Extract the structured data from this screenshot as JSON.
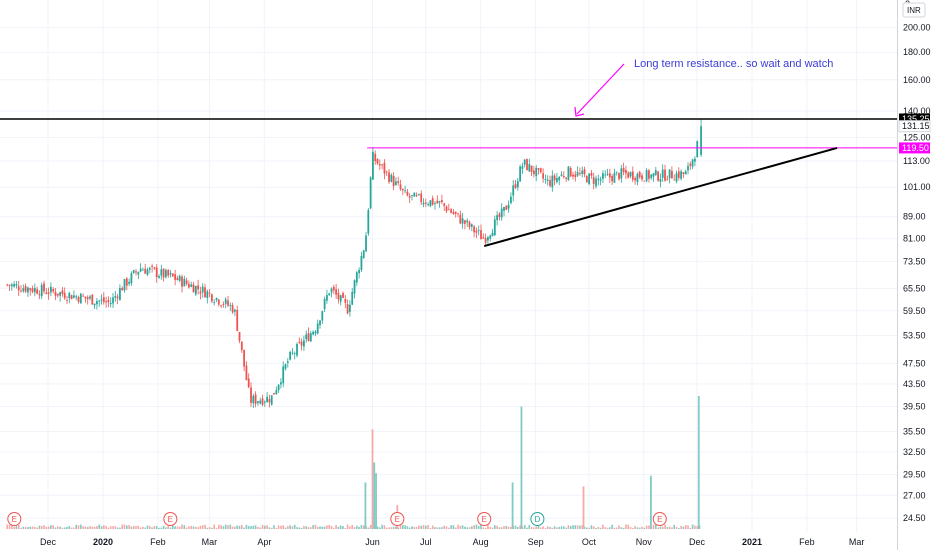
{
  "app": {
    "currency_label": "INR",
    "top_value": "2"
  },
  "annotation": {
    "text": "Long term resistance.. so wait and watch"
  },
  "price_labels": {
    "resistance": "135.25",
    "last": "131.15",
    "support_line": "119.50"
  },
  "colors": {
    "up": "#26a69a",
    "down": "#ef5350",
    "vol_up": "#80cbc4",
    "vol_down": "#f7a9a7",
    "resistance": "#000000",
    "horizontal": "#ff00ff",
    "trendline": "#000000",
    "annotation": "#3c3cd4",
    "earnings": "#ef5350",
    "dividend": "#26a69a"
  },
  "chart_data": {
    "type": "candlestick",
    "y_axis": {
      "ticks": [
        "200.00",
        "180.00",
        "160.00",
        "140.00",
        "125.00",
        "113.00",
        "101.00",
        "89.00",
        "81.00",
        "73.50",
        "65.50",
        "59.50",
        "53.50",
        "47.50",
        "43.50",
        "39.50",
        "35.50",
        "32.50",
        "29.50",
        "27.00",
        "24.50"
      ],
      "range": [
        22.5,
        230
      ],
      "scale": "log"
    },
    "x_axis": {
      "ticks": [
        "Dec",
        "2020",
        "Feb",
        "Mar",
        "Apr",
        "Jun",
        "Jul",
        "Aug",
        "Sep",
        "Oct",
        "Nov",
        "Dec",
        "2021",
        "Feb",
        "Mar"
      ]
    },
    "series_anchors": [
      {
        "date": "2019-11-08",
        "close": 66.5
      },
      {
        "date": "2019-12-10",
        "close": 64.0
      },
      {
        "date": "2020-01-05",
        "close": 61.5
      },
      {
        "date": "2020-01-12",
        "close": 66.0
      },
      {
        "date": "2020-01-22",
        "close": 71.5
      },
      {
        "date": "2020-02-10",
        "close": 68.5
      },
      {
        "date": "2020-02-28",
        "close": 64.5
      },
      {
        "date": "2020-03-15",
        "close": 60.0
      },
      {
        "date": "2020-03-24",
        "close": 40.5
      },
      {
        "date": "2020-04-05",
        "close": 41.0
      },
      {
        "date": "2020-04-15",
        "close": 48.5
      },
      {
        "date": "2020-04-30",
        "close": 55.5
      },
      {
        "date": "2020-05-08",
        "close": 65.5
      },
      {
        "date": "2020-05-18",
        "close": 60.0
      },
      {
        "date": "2020-05-28",
        "close": 80.0
      },
      {
        "date": "2020-06-01",
        "close": 115.0
      },
      {
        "date": "2020-06-20",
        "close": 97.0
      },
      {
        "date": "2020-07-10",
        "close": 94.0
      },
      {
        "date": "2020-08-03",
        "close": 81.0
      },
      {
        "date": "2020-08-15",
        "close": 92.0
      },
      {
        "date": "2020-08-25",
        "close": 112.0
      },
      {
        "date": "2020-09-08",
        "close": 103.0
      },
      {
        "date": "2020-09-20",
        "close": 108.0
      },
      {
        "date": "2020-10-05",
        "close": 104.0
      },
      {
        "date": "2020-10-20",
        "close": 107.0
      },
      {
        "date": "2020-11-05",
        "close": 106.0
      },
      {
        "date": "2020-11-25",
        "close": 107.0
      },
      {
        "date": "2020-12-01",
        "close": 119.5
      },
      {
        "date": "2020-12-02",
        "close": 131.15
      }
    ],
    "lines": {
      "resistance": {
        "price": 135.25
      },
      "horizontal": {
        "price": 119.5,
        "from": "2020-05-29",
        "to": "2021-02-18"
      },
      "trendline": {
        "from": {
          "date": "2020-08-03",
          "price": 78.5
        },
        "to": {
          "date": "2021-02-18",
          "price": 119.5
        }
      }
    },
    "event_markers": [
      {
        "date": "2019-11-12",
        "label": "E",
        "kind": "earnings"
      },
      {
        "date": "2020-02-08",
        "label": "E",
        "kind": "earnings"
      },
      {
        "date": "2020-06-15",
        "label": "E",
        "kind": "earnings"
      },
      {
        "date": "2020-08-03",
        "label": "E",
        "kind": "earnings"
      },
      {
        "date": "2020-09-02",
        "label": "D",
        "kind": "dividend"
      },
      {
        "date": "2020-11-10",
        "label": "E",
        "kind": "earnings"
      }
    ],
    "volume": {
      "spikes": [
        {
          "date": "2020-05-28",
          "rel": 0.35
        },
        {
          "date": "2020-06-01",
          "rel": 0.75
        },
        {
          "date": "2020-06-02",
          "rel": 0.5
        },
        {
          "date": "2020-06-03",
          "rel": 0.42
        },
        {
          "date": "2020-06-15",
          "rel": 0.18
        },
        {
          "date": "2020-08-19",
          "rel": 0.35
        },
        {
          "date": "2020-08-24",
          "rel": 0.92
        },
        {
          "date": "2020-09-28",
          "rel": 0.32
        },
        {
          "date": "2020-11-05",
          "rel": 0.4
        },
        {
          "date": "2020-12-02",
          "rel": 1.0
        }
      ]
    }
  }
}
